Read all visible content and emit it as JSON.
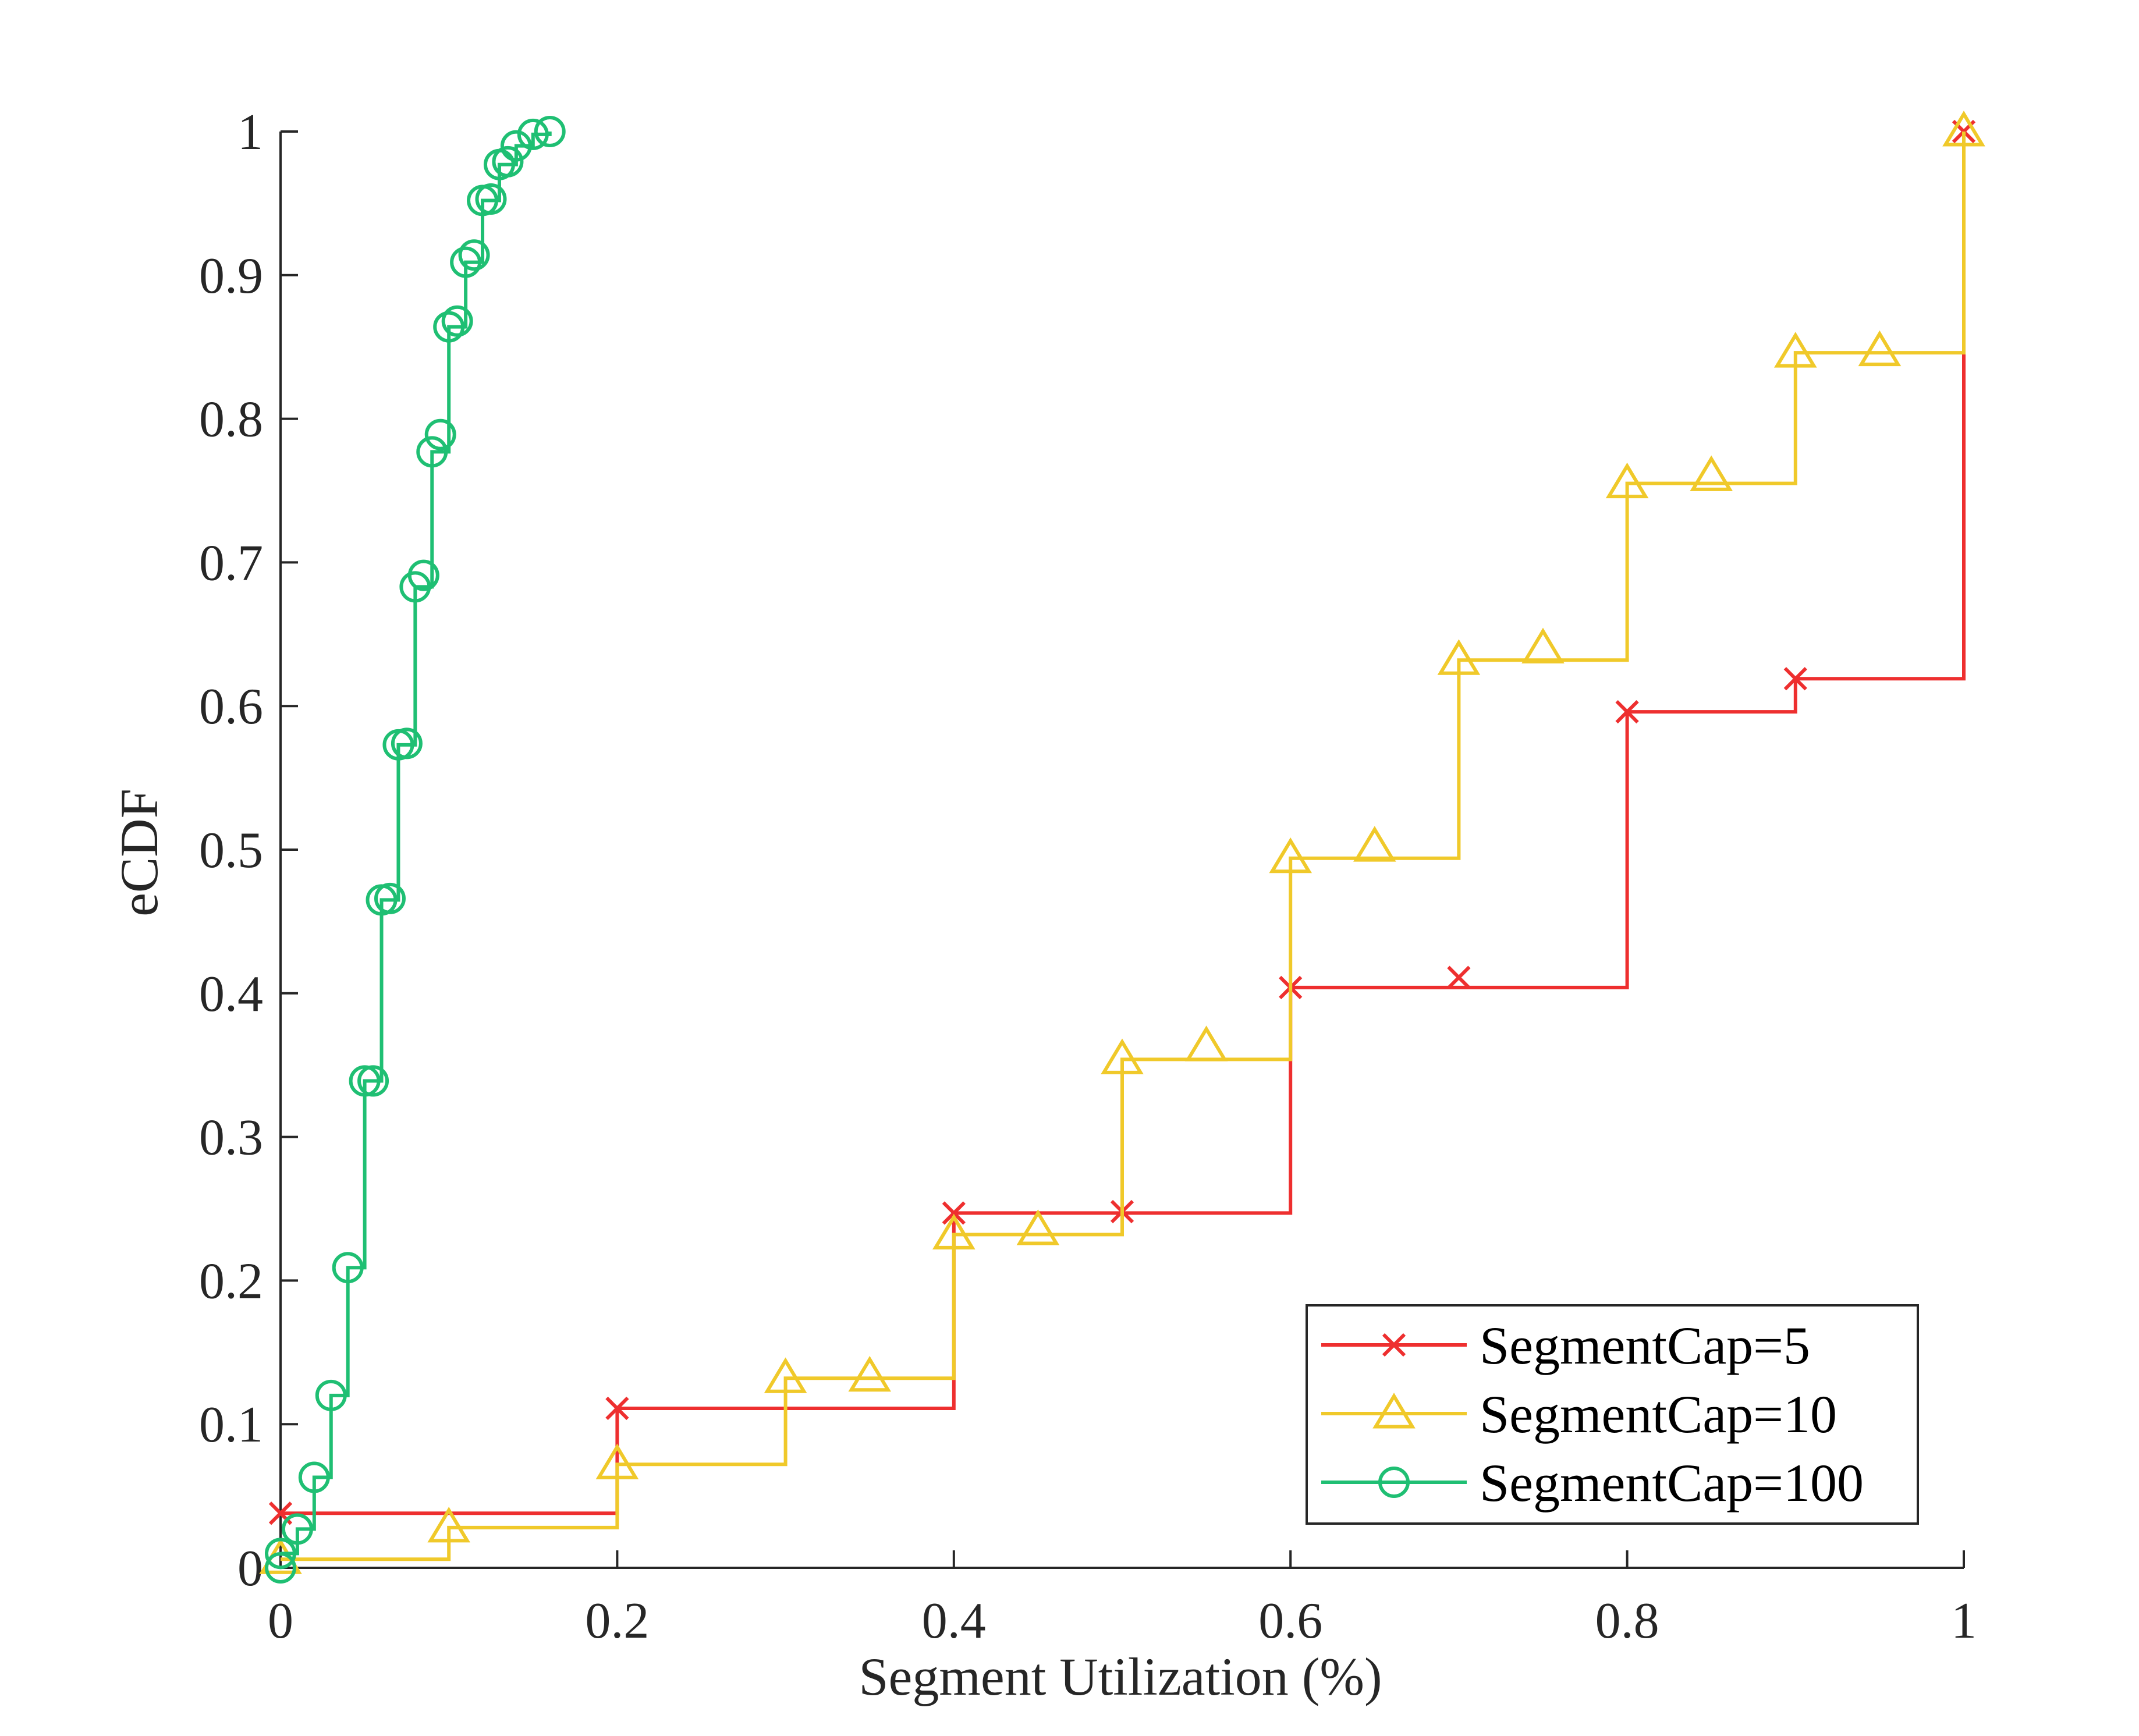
{
  "chart_data": {
    "type": "line",
    "subtype": "ecdf-step",
    "title": "",
    "xlabel": "Segment Utilization (%)",
    "ylabel": "eCDF",
    "xlim": [
      0,
      1
    ],
    "ylim": [
      0,
      1
    ],
    "grid": false,
    "box": false,
    "legend_position": "bottom-right",
    "xticks": [
      0,
      0.2,
      0.4,
      0.6,
      0.8,
      1
    ],
    "xtick_labels": [
      "0",
      "0.2",
      "0.4",
      "0.6",
      "0.8",
      "1"
    ],
    "yticks": [
      0,
      0.1,
      0.2,
      0.3,
      0.4,
      0.5,
      0.6,
      0.7,
      0.8,
      0.9,
      1
    ],
    "ytick_labels": [
      "0",
      "0.1",
      "0.2",
      "0.3",
      "0.4",
      "0.5",
      "0.6",
      "0.7",
      "0.8",
      "0.9",
      "1"
    ],
    "series": [
      {
        "name": "SegmentCap=5",
        "color": "#ee2f2f",
        "marker": "x",
        "steps": [
          [
            0,
            0.038
          ],
          [
            0.2,
            0.111
          ],
          [
            0.4,
            0.247
          ],
          [
            0.6,
            0.404
          ],
          [
            0.8,
            0.596
          ],
          [
            0.9,
            0.619
          ],
          [
            1,
            1
          ]
        ],
        "markers": [
          [
            0,
            0.038
          ],
          [
            0.2,
            0.111
          ],
          [
            0.4,
            0.247
          ],
          [
            0.5,
            0.248
          ],
          [
            0.6,
            0.404
          ],
          [
            0.7,
            0.411
          ],
          [
            0.8,
            0.596
          ],
          [
            0.9,
            0.619
          ],
          [
            1,
            1
          ]
        ]
      },
      {
        "name": "SegmentCap=10",
        "color": "#f0c92a",
        "marker": "triangle",
        "steps": [
          [
            0,
            0.006
          ],
          [
            0.1,
            0.028
          ],
          [
            0.2,
            0.072
          ],
          [
            0.3,
            0.132
          ],
          [
            0.4,
            0.232
          ],
          [
            0.5,
            0.354
          ],
          [
            0.6,
            0.494
          ],
          [
            0.7,
            0.632
          ],
          [
            0.8,
            0.755
          ],
          [
            0.9,
            0.846
          ],
          [
            1,
            1
          ]
        ],
        "markers": [
          [
            0,
            0.006
          ],
          [
            0.1,
            0.028
          ],
          [
            0.2,
            0.072
          ],
          [
            0.3,
            0.132
          ],
          [
            0.35,
            0.133
          ],
          [
            0.4,
            0.232
          ],
          [
            0.45,
            0.235
          ],
          [
            0.5,
            0.354
          ],
          [
            0.55,
            0.363
          ],
          [
            0.6,
            0.494
          ],
          [
            0.65,
            0.502
          ],
          [
            0.7,
            0.632
          ],
          [
            0.75,
            0.64
          ],
          [
            0.8,
            0.755
          ],
          [
            0.85,
            0.76
          ],
          [
            0.9,
            0.846
          ],
          [
            0.95,
            0.847
          ],
          [
            1,
            1
          ]
        ]
      },
      {
        "name": "SegmentCap=100",
        "color": "#1fbf73",
        "marker": "circle",
        "steps": [
          [
            0,
            0.01
          ],
          [
            0.01,
            0.027
          ],
          [
            0.02,
            0.063
          ],
          [
            0.03,
            0.12
          ],
          [
            0.04,
            0.209
          ],
          [
            0.05,
            0.339
          ],
          [
            0.06,
            0.465
          ],
          [
            0.07,
            0.573
          ],
          [
            0.08,
            0.683
          ],
          [
            0.09,
            0.777
          ],
          [
            0.1,
            0.864
          ],
          [
            0.11,
            0.909
          ],
          [
            0.12,
            0.952
          ],
          [
            0.13,
            0.977
          ],
          [
            0.14,
            0.99
          ],
          [
            0.15,
            0.998
          ],
          [
            0.16,
            1
          ]
        ],
        "markers": [
          [
            0,
            0.0
          ],
          [
            0.0,
            0.01
          ],
          [
            0.01,
            0.027
          ],
          [
            0.02,
            0.063
          ],
          [
            0.03,
            0.12
          ],
          [
            0.04,
            0.209
          ],
          [
            0.05,
            0.339
          ],
          [
            0.055,
            0.339
          ],
          [
            0.06,
            0.465
          ],
          [
            0.065,
            0.466
          ],
          [
            0.07,
            0.573
          ],
          [
            0.075,
            0.574
          ],
          [
            0.08,
            0.683
          ],
          [
            0.085,
            0.691
          ],
          [
            0.09,
            0.777
          ],
          [
            0.095,
            0.789
          ],
          [
            0.1,
            0.864
          ],
          [
            0.105,
            0.868
          ],
          [
            0.11,
            0.909
          ],
          [
            0.115,
            0.914
          ],
          [
            0.12,
            0.952
          ],
          [
            0.125,
            0.953
          ],
          [
            0.13,
            0.977
          ],
          [
            0.135,
            0.979
          ],
          [
            0.14,
            0.99
          ],
          [
            0.15,
            0.998
          ],
          [
            0.16,
            1
          ]
        ]
      }
    ]
  }
}
